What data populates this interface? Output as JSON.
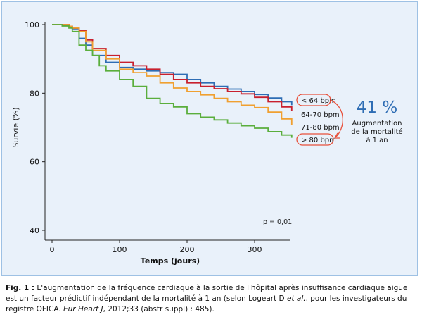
{
  "chart_data": {
    "type": "line",
    "xlabel": "Temps (jours)",
    "ylabel": "Survie (%)",
    "xlim": [
      0,
      350
    ],
    "ylim": [
      40,
      100
    ],
    "x_ticks": [
      0,
      100,
      200,
      300
    ],
    "y_ticks": [
      40,
      60,
      80,
      100
    ],
    "annotation_p": "p = 0,01",
    "series": [
      {
        "name": "< 64 bpm",
        "color": "#2e6db4",
        "x": [
          0,
          15,
          25,
          30,
          40,
          50,
          60,
          80,
          100,
          120,
          140,
          160,
          180,
          200,
          220,
          240,
          260,
          280,
          300,
          320,
          340,
          355
        ],
        "y": [
          100,
          100,
          99.5,
          98.8,
          96,
          94,
          91,
          89,
          87.5,
          87,
          86.5,
          86,
          85.5,
          84,
          83,
          82,
          81.2,
          80.5,
          79.6,
          78.6,
          77.5,
          76.5
        ]
      },
      {
        "name": "64-70 bpm",
        "color": "#c8202e",
        "x": [
          0,
          15,
          25,
          30,
          40,
          50,
          60,
          80,
          100,
          120,
          140,
          160,
          180,
          200,
          220,
          240,
          260,
          280,
          300,
          320,
          340,
          355
        ],
        "y": [
          100,
          100,
          99.5,
          99,
          98.3,
          95.5,
          93,
          91,
          89,
          88,
          87,
          85.5,
          84,
          83,
          82,
          81.3,
          80.5,
          79.8,
          78.8,
          77.5,
          76,
          74.8
        ]
      },
      {
        "name": "71-80 bpm",
        "color": "#f0a030",
        "x": [
          0,
          15,
          25,
          30,
          40,
          50,
          60,
          80,
          100,
          120,
          140,
          160,
          180,
          200,
          220,
          240,
          260,
          280,
          300,
          320,
          340,
          355
        ],
        "y": [
          100,
          100,
          99.5,
          99,
          98,
          95,
          92.5,
          90,
          87,
          86,
          85,
          83,
          81.5,
          80.5,
          79.5,
          78.5,
          77.5,
          76.5,
          75.8,
          74.5,
          72.5,
          70.8
        ]
      },
      {
        "name": "> 80 bpm",
        "color": "#5aae3c",
        "x": [
          0,
          15,
          25,
          30,
          40,
          50,
          60,
          70,
          80,
          100,
          120,
          140,
          160,
          180,
          200,
          220,
          240,
          260,
          280,
          300,
          320,
          340,
          355
        ],
        "y": [
          100,
          99.6,
          99,
          98,
          94,
          92.5,
          91,
          88,
          86.5,
          84,
          82,
          78.5,
          77,
          76,
          74,
          73,
          72.2,
          71.3,
          70.5,
          69.8,
          68.8,
          67.8,
          67
        ]
      }
    ],
    "callout_value": "41 %",
    "callout_label_line1": "Augmentation",
    "callout_label_line2": "de la mortalité",
    "callout_label_line3": "à 1 an",
    "callout_color": "#2e6db4",
    "highlight_color": "#e8503a"
  },
  "caption": {
    "fig_label": "Fig. 1 :",
    "text_part1": " L'augmentation de la fréquence cardiaque à la sortie de l'hôpital après insuffisance cardiaque aiguë est un facteur prédictif indépendant de la mortalité à 1 an (selon Logeart D ",
    "et_al": "et al.",
    "text_part2": ", pour les investigateurs du registre OFICA. ",
    "journal": "Eur Heart J",
    "text_part3": ", 2012;33 (abstr suppl) : 485)."
  }
}
